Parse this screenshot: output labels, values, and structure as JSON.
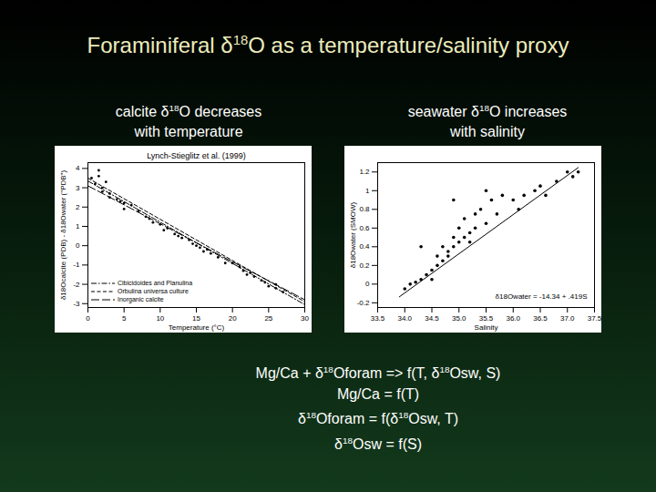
{
  "slide": {
    "title": "Foraminiferal δ18O as a temperature/salinity proxy",
    "headings": [
      [
        "calcite δ18O decreases",
        "with temperature"
      ],
      [
        "seawater δ18O increases",
        "with salinity"
      ]
    ],
    "equations": [
      "Mg/Ca + δ18Oforam => f(T, δ18Osw, S)",
      "Mg/Ca = f(T)",
      "δ18Oforam = f(δ18Osw, T)",
      "δ18Osw = f(S)"
    ]
  },
  "chart_data": [
    {
      "type": "scatter",
      "annotations": [
        "Lynch-Stieglitz et al. (1999)"
      ],
      "x_label": "Temperature (°C)",
      "y_label": "δ18Ocalcite (PDB) - δ18Owater (\"PDB\")",
      "xlim": [
        0,
        30
      ],
      "xticks": [
        0,
        5,
        10,
        15,
        20,
        25,
        30
      ],
      "ylim": [
        -3.2,
        4.3
      ],
      "yticks": [
        -3,
        -2,
        -1,
        0,
        1,
        2,
        3,
        4
      ],
      "legend": "lower left",
      "series": [
        {
          "type": "scatter",
          "marker": "circle",
          "color": "#000000",
          "x": [
            0.5,
            1,
            1.5,
            1.5,
            2,
            2,
            2.5,
            3,
            3,
            4,
            4.5,
            5,
            5,
            6,
            7,
            8,
            8.5,
            9,
            10,
            10.5,
            11,
            12,
            12.5,
            13,
            14,
            14.5,
            15,
            15.5,
            16,
            16.5,
            17,
            18,
            19,
            20,
            21,
            21.5,
            22,
            22.5,
            23,
            24,
            24.5,
            25,
            26,
            26,
            27
          ],
          "values": [
            3.5,
            3.2,
            3.6,
            3.9,
            3.0,
            2.8,
            3.3,
            2.7,
            2.5,
            2.4,
            2.3,
            2.2,
            1.9,
            2.1,
            1.8,
            1.5,
            1.4,
            1.2,
            1.1,
            0.8,
            0.9,
            0.6,
            0.5,
            0.4,
            0.3,
            0.1,
            0.0,
            -0.1,
            -0.3,
            -0.2,
            -0.4,
            -0.6,
            -0.9,
            -0.9,
            -1.1,
            -1.3,
            -1.5,
            -1.4,
            -1.6,
            -1.8,
            -1.9,
            -2.1,
            -2.2,
            -2.0,
            -2.4
          ]
        },
        {
          "name": "Cibicidoides and Planulina",
          "type": "line",
          "line_style": "dashdot",
          "color": "#000000",
          "x": [
            0,
            30
          ],
          "values": [
            3.35,
            -3.05
          ]
        },
        {
          "name": "Orbulina universa culture",
          "type": "line",
          "line_style": "dashed",
          "color": "#000000",
          "x": [
            0,
            30
          ],
          "values": [
            3.5,
            -2.9
          ]
        },
        {
          "name": "Inorganic calcite",
          "type": "line",
          "line_style": "longdash",
          "color": "#000000",
          "x": [
            0,
            30
          ],
          "values": [
            3.1,
            -2.8
          ]
        }
      ]
    },
    {
      "type": "scatter",
      "annotations": [
        "δ18Owater = -14.34 + .419S"
      ],
      "x_label": "Salinity",
      "y_label": "δ18Owater (SMOW)",
      "xlim": [
        33.5,
        37.5
      ],
      "xticks": [
        33.5,
        {
          "value": 34,
          "label": "34.0"
        },
        34.5,
        {
          "value": 35,
          "label": "35.0"
        },
        35.5,
        {
          "value": 36,
          "label": "36.0"
        },
        36.5,
        {
          "value": 37,
          "label": "37.0"
        },
        37.5
      ],
      "ylim": [
        -0.25,
        1.3
      ],
      "yticks": [
        -0.2,
        0,
        0.2,
        0.4,
        0.6,
        0.8,
        1,
        1.2
      ],
      "series": [
        {
          "type": "scatter",
          "marker": "circle",
          "color": "#000000",
          "x": [
            34.0,
            34.1,
            34.2,
            34.3,
            34.4,
            34.5,
            34.5,
            34.6,
            34.6,
            34.7,
            34.7,
            34.8,
            34.8,
            34.9,
            34.9,
            35.0,
            35.0,
            35.1,
            35.1,
            35.2,
            35.2,
            35.3,
            35.3,
            35.4,
            35.5,
            35.6,
            35.7,
            35.8,
            36.0,
            36.1,
            36.2,
            36.4,
            36.5,
            36.6,
            36.8,
            37.0,
            37.1,
            37.2,
            34.3,
            34.9,
            35.5
          ],
          "values": [
            -0.05,
            0.0,
            0.02,
            0.05,
            0.1,
            0.05,
            0.15,
            0.2,
            0.3,
            0.25,
            0.4,
            0.3,
            0.35,
            0.4,
            0.5,
            0.45,
            0.6,
            0.5,
            0.7,
            0.55,
            0.45,
            0.6,
            0.75,
            0.8,
            0.65,
            0.9,
            0.75,
            0.95,
            0.9,
            0.8,
            0.95,
            1.0,
            1.05,
            0.95,
            1.1,
            1.2,
            1.15,
            1.2,
            0.4,
            0.9,
            1.0
          ]
        },
        {
          "type": "line",
          "line_style": "solid",
          "color": "#000000",
          "x": [
            33.9,
            37.2
          ],
          "values": [
            -0.136,
            1.247
          ]
        }
      ]
    }
  ]
}
